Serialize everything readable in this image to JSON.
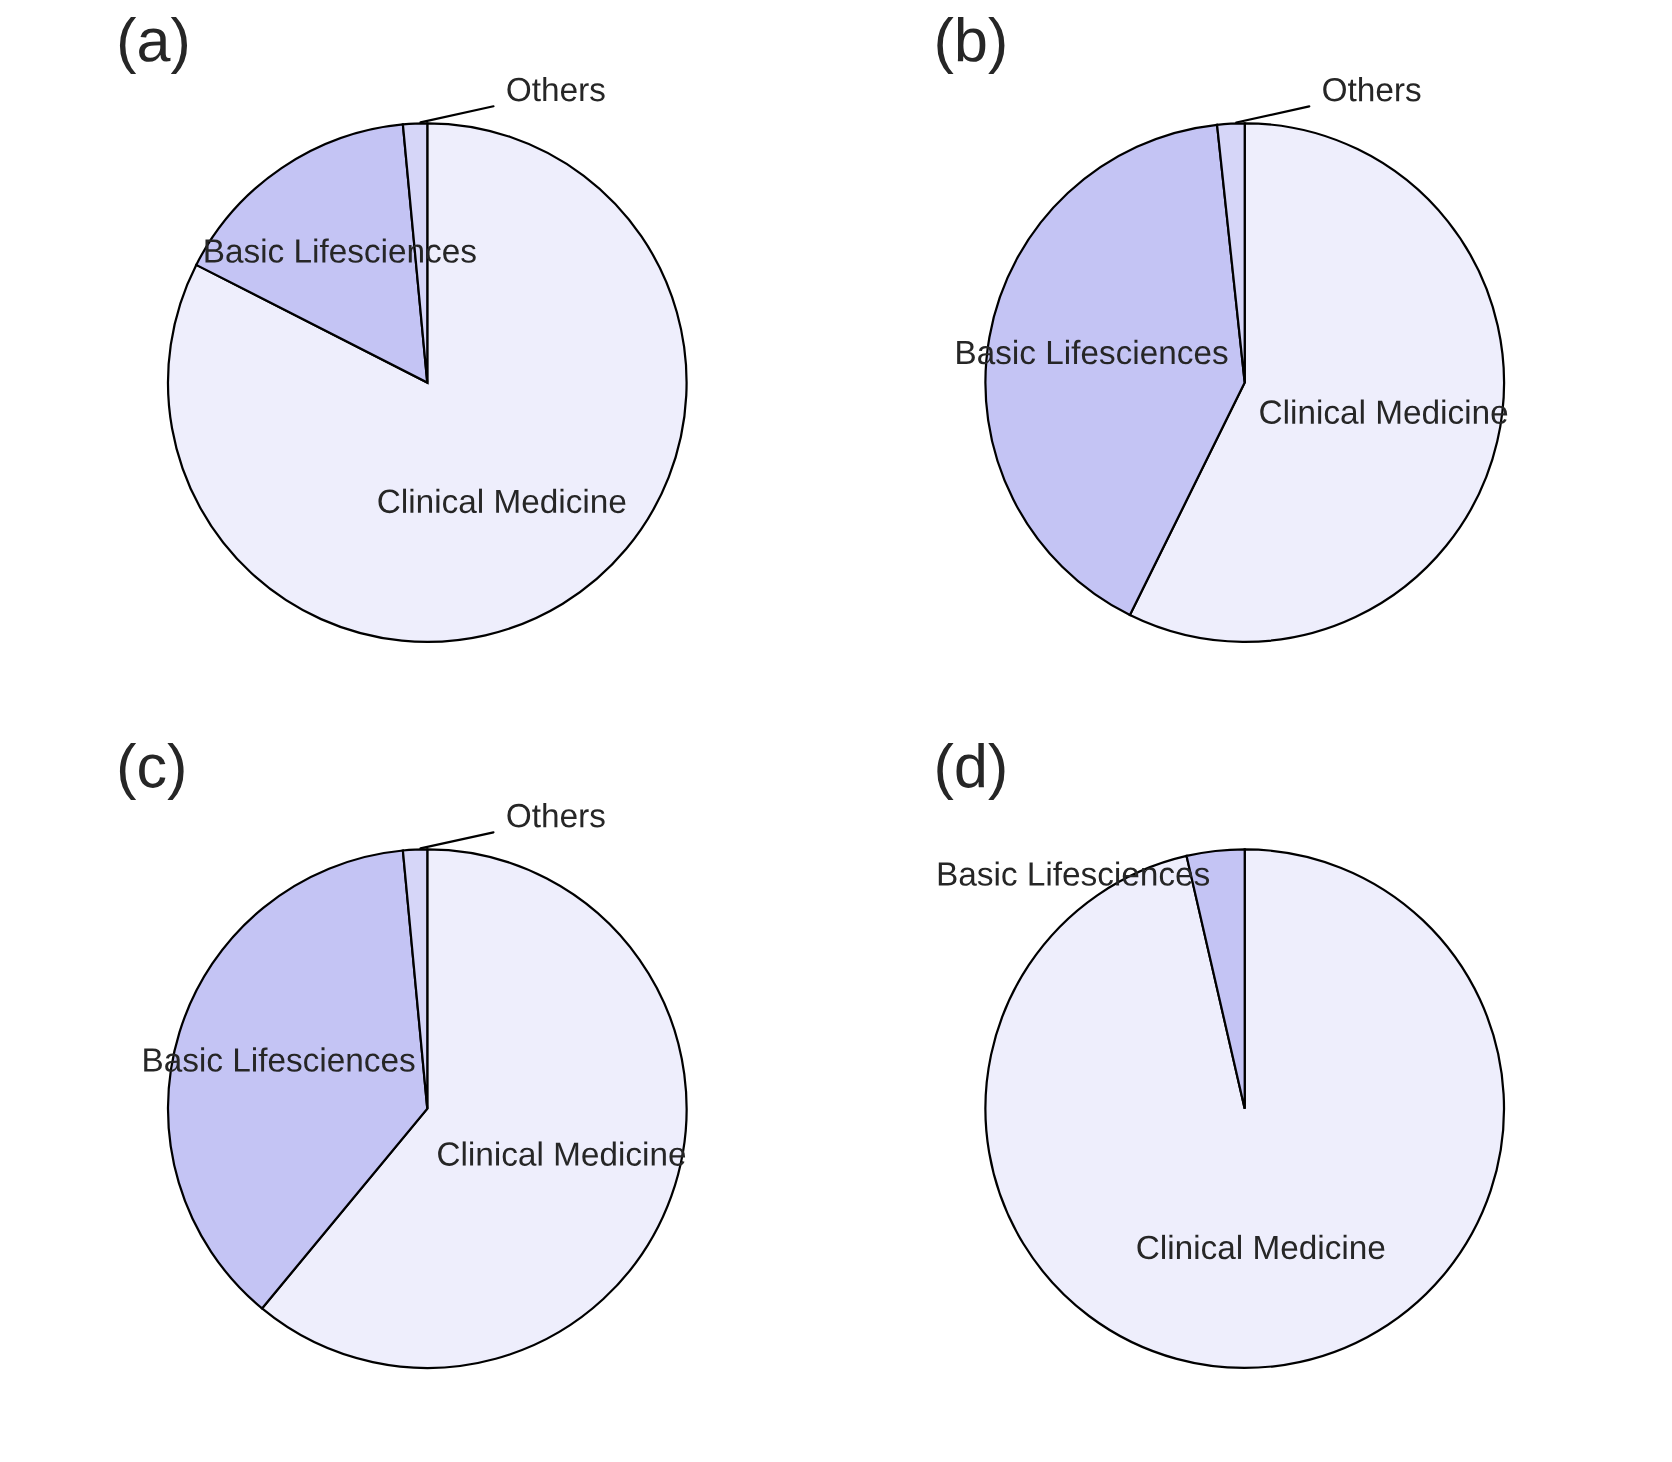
{
  "chart_data": [
    {
      "type": "pie",
      "title": "(a)",
      "categories": [
        "Clinical Medicine",
        "Basic Lifesciences",
        "Others"
      ],
      "values": [
        82.5,
        16,
        1.5
      ],
      "colors": [
        "#eeeefc",
        "#c4c4f4",
        "#d6d6f8"
      ]
    },
    {
      "type": "pie",
      "title": "(b)",
      "categories": [
        "Clinical Medicine",
        "Basic Lifesciences",
        "Others"
      ],
      "values": [
        57.3,
        41,
        1.7
      ],
      "colors": [
        "#eeeefc",
        "#c4c4f4",
        "#d6d6f8"
      ]
    },
    {
      "type": "pie",
      "title": "(c)",
      "categories": [
        "Clinical Medicine",
        "Basic Lifesciences",
        "Others"
      ],
      "values": [
        61,
        37.5,
        1.5
      ],
      "colors": [
        "#eeeefc",
        "#c4c4f4",
        "#d6d6f8"
      ]
    },
    {
      "type": "pie",
      "title": "(d)",
      "categories": [
        "Clinical Medicine",
        "Basic Lifesciences"
      ],
      "values": [
        96.4,
        3.6
      ],
      "colors": [
        "#eeeefc",
        "#c4c4f4"
      ]
    }
  ]
}
